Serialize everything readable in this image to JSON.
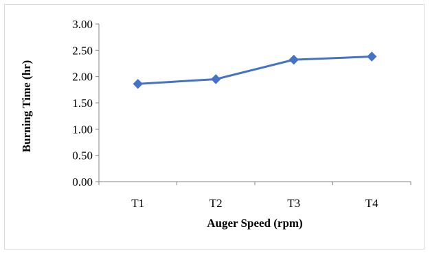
{
  "chart_data": {
    "type": "line",
    "title": "",
    "xlabel": "Auger Speed (rpm)",
    "ylabel": "Burning Time (hr)",
    "categories": [
      "T1",
      "T2",
      "T3",
      "T4"
    ],
    "series": [
      {
        "values": [
          1.86,
          1.95,
          2.32,
          2.38
        ],
        "color": "#4472c4",
        "marker": "diamond"
      }
    ],
    "ylim": [
      0,
      3
    ],
    "yticks": [
      0.0,
      0.5,
      1.0,
      1.5,
      2.0,
      2.5,
      3.0
    ],
    "ytick_labels": [
      "0.00",
      "0.50",
      "1.00",
      "1.50",
      "2.00",
      "2.50",
      "3.00"
    ],
    "grid": false,
    "legend": "none"
  }
}
